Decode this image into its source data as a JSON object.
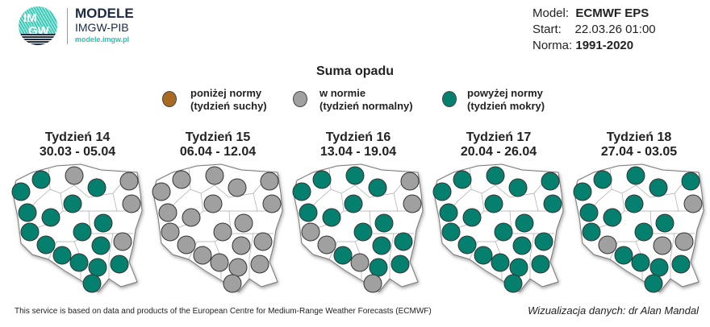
{
  "logo": {
    "text_top": "IM",
    "text_bottom": "GW",
    "brand": "MODELE",
    "org": "IMGW-PIB",
    "url": "modele.imgw.pl"
  },
  "info": {
    "model_label": "Model:",
    "model_value": "ECMWF EPS",
    "start_label": "Start:",
    "start_value": "22.03.26 01:00",
    "norm_label": "Norma:",
    "norm_value": "1991-2020"
  },
  "title": "Suma opadu",
  "legend": [
    {
      "line1": "poniżej normy",
      "line2": "(tydzień suchy)",
      "color": "#a86a22"
    },
    {
      "line1": "w normie",
      "line2": "(tydzień normalny)",
      "color": "#a0a0a0"
    },
    {
      "line1": "powyżej normy",
      "line2": "(tydzień mokry)",
      "color": "#05806e"
    }
  ],
  "weeks": [
    {
      "title": "Tydzień 14",
      "dates": "30.03 - 05.04",
      "stations": "GNGGNGNGGGGGNGGGGGGG"
    },
    {
      "title": "Tydzień 15",
      "dates": "06.04 - 12.04",
      "stations": "NNNNNNNNNNNNNNNNNNNN"
    },
    {
      "title": "Tydzień 16",
      "dates": "13.04 - 19.04",
      "stations": "GGGGNGNGGGNGGNGGNGGN"
    },
    {
      "title": "Tydzień 17",
      "dates": "20.04 - 26.04",
      "stations": "GGGGGGGGGGGGGGGGGGGG"
    },
    {
      "title": "Tydzień 18",
      "dates": "27.04 - 03.05",
      "stations": "GGGGGGNGGGGGNNNGGGGG"
    }
  ],
  "footer": "This service is based on data and products of the European Centre for Medium-Range Weather Forecasts (ECMWF)",
  "credit": "Wizualizacja danych: dr Alan Mandal"
}
